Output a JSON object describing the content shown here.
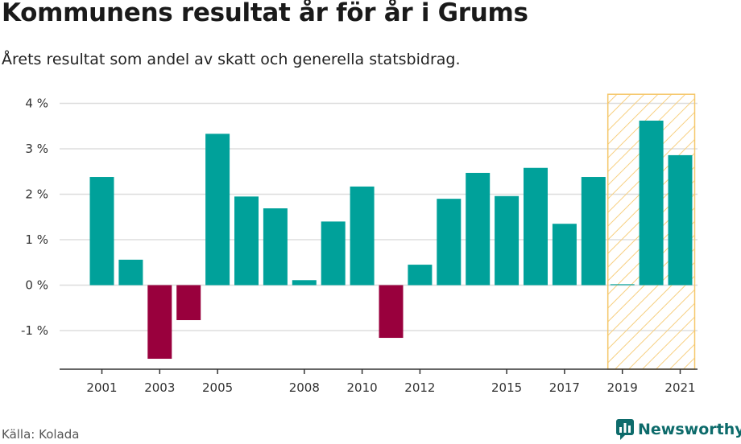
{
  "header": {
    "title": "Kommunens resultat år för år i Grums",
    "subtitle": "Årets resultat som andel av skatt och generella statsbidrag."
  },
  "footer": {
    "source": "Källa: Kolada",
    "brand": "Newsworthy",
    "brand_icon": "newsworthy-logo-icon"
  },
  "colors": {
    "positive": "#00a19a",
    "negative": "#99003d",
    "highlight_border": "#f5c76a",
    "highlight_hatch": "#f7cf7f",
    "grid": "#dddddd",
    "axis": "#333333"
  },
  "chart_data": {
    "type": "bar",
    "categories": [
      "2001",
      "2002",
      "2003",
      "2004",
      "2005",
      "2006",
      "2007",
      "2008",
      "2009",
      "2010",
      "2011",
      "2012",
      "2013",
      "2014",
      "2015",
      "2016",
      "2017",
      "2018",
      "2019",
      "2020",
      "2021"
    ],
    "values": [
      2.38,
      0.56,
      -1.62,
      -0.77,
      3.33,
      1.95,
      1.69,
      0.11,
      1.4,
      2.17,
      -1.16,
      0.45,
      1.9,
      2.47,
      1.96,
      2.58,
      1.35,
      2.38,
      0.02,
      3.62,
      2.86
    ],
    "x_tick_labels": [
      "2001",
      "2003",
      "2005",
      "2008",
      "2010",
      "2012",
      "2015",
      "2017",
      "2019",
      "2021"
    ],
    "y_ticks": [
      -1,
      0,
      1,
      2,
      3,
      4
    ],
    "y_tick_labels": [
      "-1 %",
      "0 %",
      "1 %",
      "2 %",
      "3 %",
      "4 %"
    ],
    "ylim": [
      -1.9,
      4.2
    ],
    "highlight_range": [
      "2019",
      "2021"
    ],
    "grid": true,
    "title": "Kommunens resultat år för år i Grums",
    "subtitle": "Årets resultat som andel av skatt och generella statsbidrag."
  }
}
